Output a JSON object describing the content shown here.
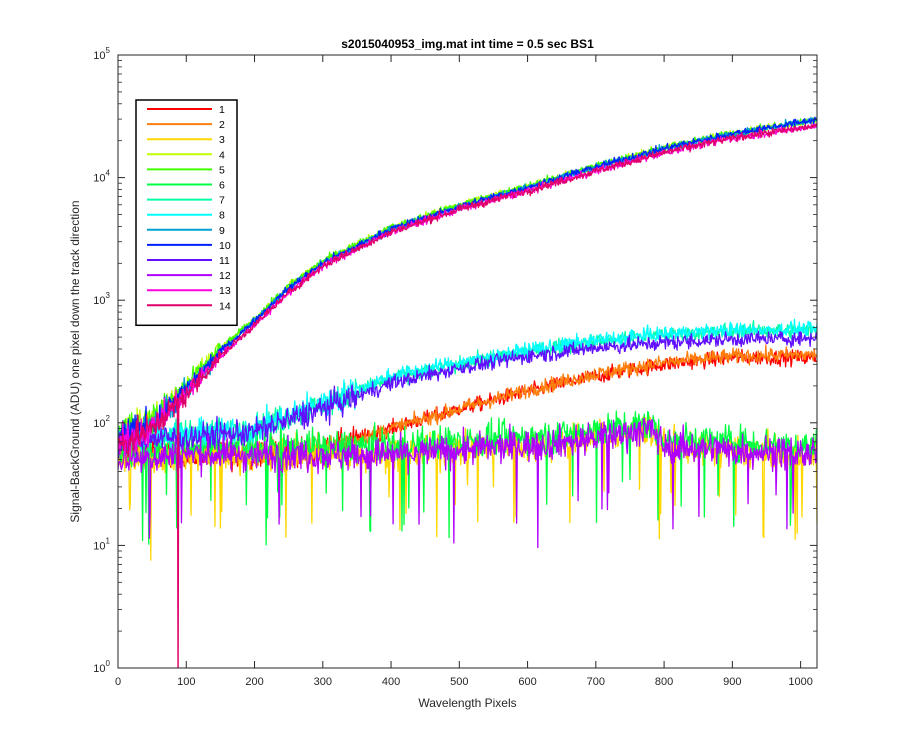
{
  "chart_data": {
    "type": "line",
    "title": "s2015040953_img.mat int time = 0.5 sec   BS1",
    "xlabel": "Wavelength Pixels",
    "ylabel": "Signal-BackGround (ADU) one pixel down the track direction",
    "xlim": [
      0,
      1024
    ],
    "ylim": [
      1,
      100000
    ],
    "yscale": "log",
    "x_ticks": [
      "0",
      "100",
      "200",
      "300",
      "400",
      "500",
      "600",
      "700",
      "800",
      "900",
      "1000"
    ],
    "y_ticks": [
      {
        "base": "10",
        "exp": "0"
      },
      {
        "base": "10",
        "exp": "1"
      },
      {
        "base": "10",
        "exp": "2"
      },
      {
        "base": "10",
        "exp": "3"
      },
      {
        "base": "10",
        "exp": "4"
      },
      {
        "base": "10",
        "exp": "5"
      }
    ],
    "grid": false,
    "legend_position": "top-left",
    "series": [
      {
        "name": "1",
        "color": "#ff0000",
        "profile": "medium",
        "x": [
          0,
          50,
          100,
          200,
          300,
          400,
          500,
          600,
          700,
          800,
          900,
          1024
        ],
        "values": [
          55,
          60,
          55,
          55,
          60,
          90,
          130,
          180,
          240,
          300,
          340,
          340
        ]
      },
      {
        "name": "2",
        "color": "#ff7f0e",
        "profile": "medium",
        "x": [
          0,
          50,
          100,
          200,
          300,
          400,
          500,
          600,
          700,
          800,
          900,
          1024
        ],
        "values": [
          55,
          60,
          55,
          55,
          60,
          90,
          130,
          185,
          250,
          310,
          350,
          360
        ]
      },
      {
        "name": "3",
        "color": "#ffd700",
        "profile": "low",
        "x": [
          0,
          100,
          200,
          300,
          400,
          500,
          600,
          700,
          780,
          800,
          900,
          1024
        ],
        "values": [
          50,
          55,
          55,
          55,
          55,
          60,
          65,
          75,
          90,
          65,
          60,
          55
        ]
      },
      {
        "name": "4",
        "color": "#bfff00",
        "profile": "high",
        "x": [
          0,
          50,
          100,
          150,
          200,
          250,
          300,
          400,
          500,
          600,
          700,
          800,
          900,
          1024
        ],
        "values": [
          80,
          110,
          200,
          400,
          700,
          1300,
          2100,
          3900,
          6000,
          8500,
          12500,
          17500,
          23000,
          29500
        ]
      },
      {
        "name": "5",
        "color": "#40ff00",
        "profile": "high",
        "x": [
          0,
          50,
          100,
          150,
          200,
          250,
          300,
          400,
          500,
          600,
          700,
          800,
          900,
          1024
        ],
        "values": [
          80,
          110,
          200,
          400,
          700,
          1300,
          2100,
          3900,
          6000,
          8500,
          12500,
          17500,
          23000,
          29500
        ]
      },
      {
        "name": "6",
        "color": "#00ff40",
        "profile": "low",
        "x": [
          0,
          100,
          200,
          300,
          400,
          500,
          600,
          700,
          780,
          800,
          900,
          1024
        ],
        "values": [
          60,
          65,
          65,
          65,
          65,
          70,
          75,
          85,
          100,
          75,
          70,
          65
        ]
      },
      {
        "name": "7",
        "color": "#00ffa0",
        "profile": "medium",
        "x": [
          0,
          50,
          100,
          200,
          300,
          400,
          500,
          600,
          700,
          800,
          900,
          1024
        ],
        "values": [
          75,
          80,
          80,
          90,
          140,
          230,
          300,
          380,
          460,
          520,
          560,
          570
        ]
      },
      {
        "name": "8",
        "color": "#00ffff",
        "profile": "medium",
        "x": [
          0,
          50,
          100,
          200,
          300,
          400,
          500,
          600,
          700,
          800,
          900,
          1024
        ],
        "values": [
          75,
          80,
          80,
          90,
          145,
          240,
          310,
          390,
          470,
          530,
          570,
          580
        ]
      },
      {
        "name": "9",
        "color": "#00a0d0",
        "profile": "high",
        "x": [
          0,
          50,
          100,
          150,
          200,
          250,
          300,
          400,
          500,
          600,
          700,
          800,
          900,
          1024
        ],
        "values": [
          75,
          100,
          185,
          380,
          680,
          1250,
          2000,
          3800,
          5800,
          8300,
          12200,
          17200,
          22800,
          29500
        ]
      },
      {
        "name": "10",
        "color": "#0020ff",
        "profile": "high",
        "x": [
          0,
          50,
          100,
          150,
          200,
          250,
          300,
          400,
          500,
          600,
          700,
          800,
          900,
          1024
        ],
        "values": [
          75,
          100,
          185,
          380,
          680,
          1250,
          2000,
          3800,
          5800,
          8300,
          12200,
          17200,
          22800,
          29800
        ]
      },
      {
        "name": "11",
        "color": "#6010ff",
        "profile": "medium",
        "x": [
          0,
          50,
          100,
          200,
          300,
          400,
          500,
          600,
          700,
          800,
          900,
          1024
        ],
        "values": [
          70,
          75,
          75,
          85,
          130,
          210,
          280,
          350,
          410,
          450,
          480,
          490
        ]
      },
      {
        "name": "12",
        "color": "#b000ff",
        "profile": "low",
        "x": [
          0,
          100,
          200,
          300,
          400,
          500,
          600,
          700,
          780,
          800,
          900,
          1024
        ],
        "values": [
          50,
          55,
          55,
          55,
          55,
          60,
          65,
          75,
          90,
          65,
          60,
          55
        ]
      },
      {
        "name": "13",
        "color": "#ff00e0",
        "profile": "high",
        "x": [
          0,
          50,
          100,
          150,
          200,
          250,
          300,
          400,
          500,
          600,
          700,
          800,
          900,
          1024
        ],
        "values": [
          65,
          90,
          170,
          350,
          630,
          1150,
          1900,
          3600,
          5500,
          7800,
          11300,
          16000,
          21000,
          26500
        ]
      },
      {
        "name": "14",
        "color": "#e0006a",
        "profile": "high",
        "x": [
          0,
          50,
          100,
          150,
          200,
          250,
          300,
          400,
          500,
          600,
          700,
          800,
          900,
          1024
        ],
        "values": [
          65,
          90,
          170,
          350,
          630,
          1150,
          1900,
          3600,
          5500,
          7800,
          11300,
          16000,
          21000,
          26500
        ]
      }
    ]
  }
}
